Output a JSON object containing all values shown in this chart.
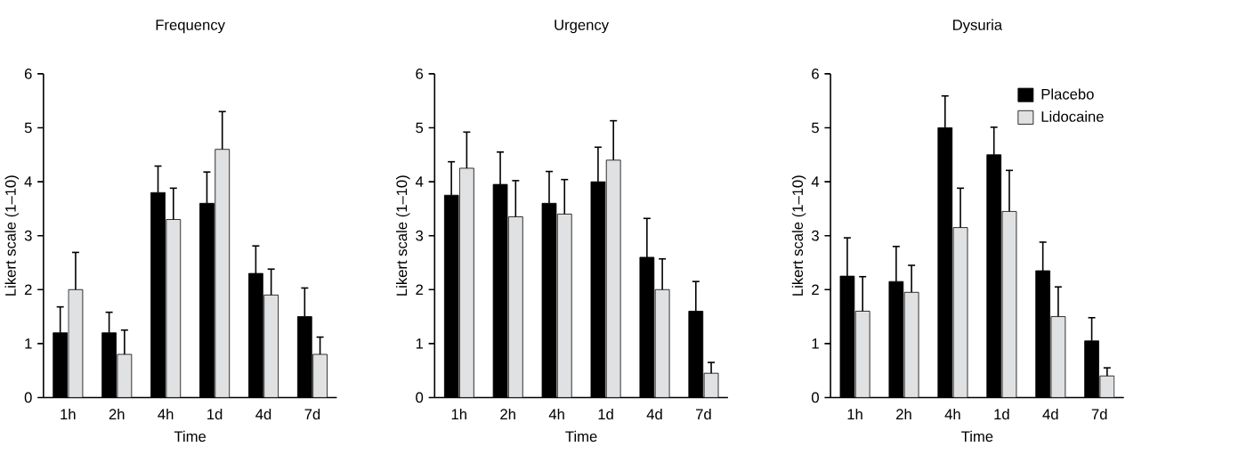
{
  "chart_data": [
    {
      "type": "bar",
      "title": "Frequency",
      "xlabel": "Time",
      "ylabel": "Likert scale (1–10)",
      "categories": [
        "1h",
        "2h",
        "4h",
        "1d",
        "4d",
        "7d"
      ],
      "ylim": [
        0,
        6
      ],
      "yticks": [
        0,
        1,
        2,
        3,
        4,
        5,
        6
      ],
      "series": [
        {
          "color": "#000000",
          "values": [
            1.2,
            1.2,
            3.8,
            3.6,
            2.3,
            1.5
          ],
          "errors": [
            [
              1.2,
              1.68
            ],
            [
              1.2,
              1.58
            ],
            [
              3.8,
              4.29
            ],
            [
              3.6,
              4.18
            ],
            [
              2.3,
              2.81
            ],
            [
              1.5,
              2.03
            ]
          ]
        },
        {
          "color": "#e0e1e3",
          "values": [
            2.0,
            0.8,
            3.3,
            4.6,
            1.9,
            0.8
          ],
          "errors": [
            [
              2.0,
              2.69
            ],
            [
              0.8,
              1.25
            ],
            [
              3.3,
              3.88
            ],
            [
              4.6,
              5.3
            ],
            [
              1.9,
              2.38
            ],
            [
              0.8,
              1.12
            ]
          ]
        }
      ]
    },
    {
      "type": "bar",
      "title": "Urgency",
      "xlabel": "Time",
      "ylabel": "Likert scale (1–10)",
      "categories": [
        "1h",
        "2h",
        "4h",
        "1d",
        "4d",
        "7d"
      ],
      "ylim": [
        0,
        6
      ],
      "yticks": [
        0,
        1,
        2,
        3,
        4,
        5,
        6
      ],
      "series": [
        {
          "color": "#000000",
          "values": [
            3.75,
            3.95,
            3.6,
            4.0,
            2.6,
            1.6
          ],
          "errors": [
            [
              3.75,
              4.37
            ],
            [
              3.95,
              4.55
            ],
            [
              3.6,
              4.19
            ],
            [
              4.0,
              4.64
            ],
            [
              2.6,
              3.32
            ],
            [
              1.6,
              2.15
            ]
          ]
        },
        {
          "color": "#e0e1e3",
          "values": [
            4.25,
            3.35,
            3.4,
            4.4,
            2.0,
            0.45
          ],
          "errors": [
            [
              4.25,
              4.92
            ],
            [
              3.35,
              4.02
            ],
            [
              3.4,
              4.04
            ],
            [
              4.4,
              5.13
            ],
            [
              2.0,
              2.57
            ],
            [
              0.45,
              0.65
            ]
          ]
        }
      ]
    },
    {
      "type": "bar",
      "title": "Dysuria",
      "xlabel": "Time",
      "ylabel": "Likert scale (1–10)",
      "categories": [
        "1h",
        "2h",
        "4h",
        "1d",
        "4d",
        "7d"
      ],
      "ylim": [
        0,
        6
      ],
      "yticks": [
        0,
        1,
        2,
        3,
        4,
        5,
        6
      ],
      "legend": "top right",
      "series": [
        {
          "name": "Placebo",
          "color": "#000000",
          "values": [
            2.25,
            2.15,
            5.0,
            4.5,
            2.35,
            1.05
          ],
          "errors": [
            [
              2.25,
              2.96
            ],
            [
              2.15,
              2.8
            ],
            [
              5.0,
              5.59
            ],
            [
              4.5,
              5.01
            ],
            [
              2.35,
              2.88
            ],
            [
              1.05,
              1.48
            ]
          ]
        },
        {
          "name": "Lidocaine",
          "color": "#e0e1e3",
          "values": [
            1.6,
            1.95,
            3.15,
            3.45,
            1.5,
            0.4
          ],
          "errors": [
            [
              1.6,
              2.24
            ],
            [
              1.95,
              2.45
            ],
            [
              3.15,
              3.88
            ],
            [
              3.45,
              4.21
            ],
            [
              1.5,
              2.05
            ],
            [
              0.4,
              0.55
            ]
          ]
        }
      ]
    }
  ]
}
